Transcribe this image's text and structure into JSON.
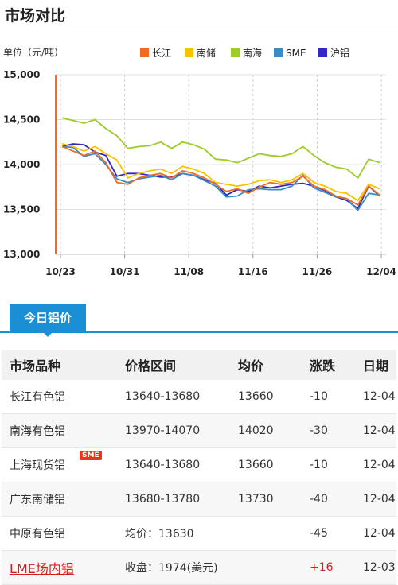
{
  "header": {
    "title": "市场对比"
  },
  "chart_data": {
    "type": "line",
    "ylabel": "单位（元/吨）",
    "ylim": [
      13000,
      15000
    ],
    "yticks": [
      "15,000",
      "14,500",
      "14,000",
      "13,500",
      "13,000"
    ],
    "ytick_values": [
      15000,
      14500,
      14000,
      13500,
      13000
    ],
    "xticks": [
      "10/23",
      "10/31",
      "11/08",
      "11/16",
      "11/26",
      "12/04"
    ],
    "grid": true,
    "legend_position": "top",
    "series": [
      {
        "name": "长江",
        "color": "#f26b1d",
        "values": [
          14200,
          14150,
          14100,
          14150,
          14020,
          13800,
          13780,
          13850,
          13880,
          13900,
          13850,
          13930,
          13900,
          13850,
          13780,
          13700,
          13730,
          13680,
          13750,
          13800,
          13780,
          13800,
          13870,
          13760,
          13720,
          13650,
          13620,
          13550,
          13760,
          13660
        ]
      },
      {
        "name": "南储",
        "color": "#f5c400",
        "values": [
          14230,
          14200,
          14150,
          14200,
          14120,
          14050,
          13850,
          13900,
          13930,
          13950,
          13900,
          13980,
          13950,
          13900,
          13800,
          13780,
          13760,
          13780,
          13820,
          13830,
          13800,
          13830,
          13900,
          13800,
          13760,
          13700,
          13680,
          13600,
          13780,
          13730
        ]
      },
      {
        "name": "南海",
        "color": "#9ccc2a",
        "values": [
          14520,
          14490,
          14460,
          14500,
          14400,
          14320,
          14180,
          14200,
          14210,
          14250,
          14180,
          14250,
          14220,
          14170,
          14060,
          14050,
          14020,
          14070,
          14120,
          14100,
          14090,
          14120,
          14200,
          14100,
          14020,
          13970,
          13950,
          13850,
          14060,
          14020
        ]
      },
      {
        "name": "SME",
        "color": "#3a8cc6",
        "values": [
          14200,
          14190,
          14090,
          14120,
          14000,
          13840,
          13800,
          13840,
          13860,
          13880,
          13830,
          13900,
          13880,
          13820,
          13760,
          13640,
          13650,
          13720,
          13730,
          13720,
          13720,
          13760,
          13880,
          13740,
          13690,
          13640,
          13620,
          13490,
          13680,
          13660
        ]
      },
      {
        "name": "沪铝",
        "color": "#3228c4",
        "values": [
          14200,
          14230,
          14220,
          14140,
          14100,
          13870,
          13900,
          13900,
          13880,
          13860,
          13860,
          13900,
          13880,
          13830,
          13790,
          13660,
          13720,
          13700,
          13760,
          13740,
          13760,
          13780,
          13790,
          13760,
          13710,
          13640,
          13600,
          13510,
          13760,
          13650
        ]
      }
    ]
  },
  "tab": {
    "label": "今日铝价"
  },
  "table": {
    "headers": [
      "市场品种",
      "价格区间",
      "均价",
      "涨跌",
      "日期"
    ],
    "rows": [
      {
        "market": "长江有色铝",
        "range": "13640-13680",
        "avg": "13660",
        "change": "-10",
        "date": "12-04"
      },
      {
        "market": "南海有色铝",
        "range": "13970-14070",
        "avg": "14020",
        "change": "-30",
        "date": "12-04"
      },
      {
        "market": "上海现货铝",
        "badge": "SME",
        "range": "13640-13680",
        "avg": "13660",
        "change": "-10",
        "date": "12-04"
      },
      {
        "market": "广东南储铝",
        "range": "13680-13780",
        "avg": "13730",
        "change": "-40",
        "date": "12-04"
      },
      {
        "market": "中原有色铝",
        "range": "均价：13630",
        "avg": "",
        "change": "-45",
        "date": "12-04"
      },
      {
        "market": "LME场内铝",
        "range": "收盘：1974(美元)",
        "avg": "",
        "change": "+16",
        "date": "12-03"
      }
    ]
  }
}
